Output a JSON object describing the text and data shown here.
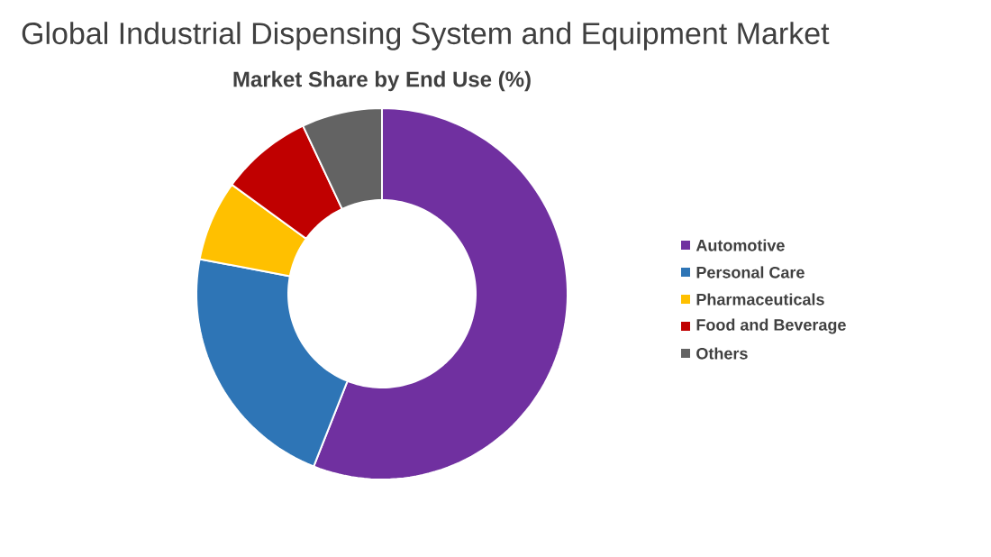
{
  "chart_data": {
    "type": "donut",
    "title": "Global Industrial Dispensing System and Equipment Market",
    "subtitle": "Market Share by End Use (%)",
    "categories": [
      "Automotive",
      "Personal Care",
      "Pharmaceuticals",
      "Food and Beverage",
      "Others"
    ],
    "values": [
      56,
      22,
      7,
      8,
      7
    ],
    "colors": [
      "#7030a0",
      "#2e75b6",
      "#ffc000",
      "#c00000",
      "#636363"
    ],
    "legend": "right"
  }
}
